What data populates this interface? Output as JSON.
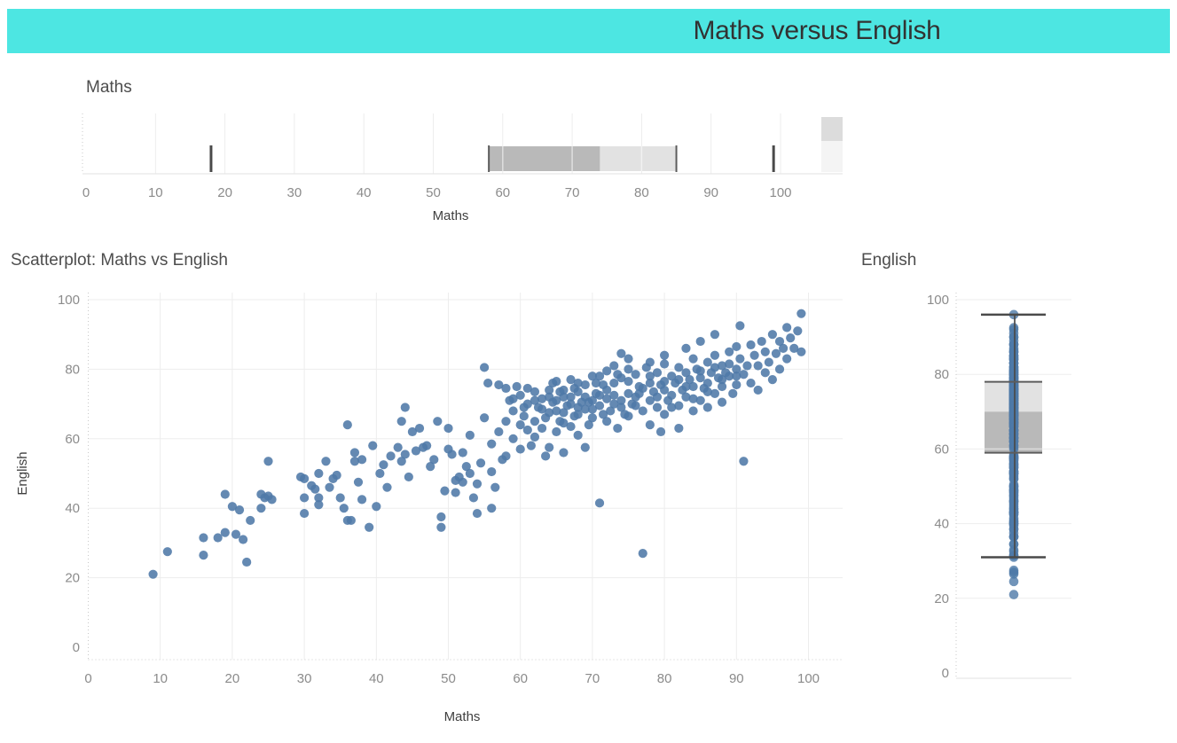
{
  "title": "Maths versus English",
  "colors": {
    "banner": "#4DE6E2",
    "banner_text": "#323232",
    "panel_title": "#4D4D4D",
    "tick_label": "#8B8B8B",
    "axis_title": "#3F3F3F",
    "point": "#4E79A7",
    "box_dark": "#B9B9B9",
    "box_light": "#E2E2E2",
    "box_border": "#5C5C5C",
    "whisker": "#4A4A4A",
    "gridline": "#EDEDED",
    "axis_line": "#E2E2E2",
    "dotted_edge": "#C9C9C9",
    "strip_dark": "#DCDCDC",
    "strip_light": "#F4F4F4"
  },
  "panels": {
    "maths_box": {
      "title": "Maths",
      "axis_title": "Maths"
    },
    "scatter": {
      "title": "Scatterplot: Maths vs English",
      "x_axis_title": "Maths",
      "y_axis_title": "English"
    },
    "english_box": {
      "title": "English"
    }
  },
  "chart_data": [
    {
      "id": "maths-box",
      "type": "boxplot-horizontal",
      "title": "Maths",
      "xlabel": "Maths",
      "xlim": [
        0,
        109
      ],
      "x_ticks": [
        0,
        10,
        20,
        30,
        40,
        50,
        60,
        70,
        80,
        90,
        100
      ],
      "grid": true,
      "whisker_low": 18,
      "q1": 58,
      "median": 74,
      "q3": 85,
      "whisker_high": 99
    },
    {
      "id": "scatter",
      "type": "scatter",
      "title": "Scatterplot: Maths vs English",
      "xlabel": "Maths",
      "ylabel": "English",
      "xlim": [
        0,
        105
      ],
      "ylim": [
        0,
        106
      ],
      "x_ticks": [
        0,
        10,
        20,
        30,
        40,
        50,
        60,
        70,
        80,
        90,
        100
      ],
      "y_ticks": [
        0,
        20,
        40,
        60,
        80,
        100
      ],
      "grid": true,
      "points": [
        [
          9,
          21
        ],
        [
          11,
          27.5
        ],
        [
          16,
          26.5
        ],
        [
          16,
          31.5
        ],
        [
          18,
          31.5
        ],
        [
          19,
          44
        ],
        [
          19,
          33
        ],
        [
          20,
          40.5
        ],
        [
          20.5,
          32.5
        ],
        [
          21,
          39.5
        ],
        [
          21.5,
          31
        ],
        [
          22,
          24.5
        ],
        [
          22.5,
          36.5
        ],
        [
          24,
          44
        ],
        [
          24,
          40
        ],
        [
          24.5,
          43
        ],
        [
          25,
          53.5
        ],
        [
          25,
          43.5
        ],
        [
          25.5,
          42.5
        ],
        [
          29.5,
          49
        ],
        [
          30,
          48.5
        ],
        [
          30,
          43
        ],
        [
          30,
          38.5
        ],
        [
          31,
          46.5
        ],
        [
          31.5,
          45.5
        ],
        [
          32,
          50
        ],
        [
          32,
          43
        ],
        [
          32,
          41
        ],
        [
          33,
          53.5
        ],
        [
          33.5,
          46
        ],
        [
          34,
          48.5
        ],
        [
          34.5,
          49.5
        ],
        [
          35,
          43
        ],
        [
          35.5,
          40
        ],
        [
          36,
          64
        ],
        [
          36,
          36.5
        ],
        [
          36.5,
          36.5
        ],
        [
          37,
          56
        ],
        [
          37,
          53.5
        ],
        [
          37.5,
          47.5
        ],
        [
          38,
          42.5
        ],
        [
          38,
          54
        ],
        [
          39,
          34.5
        ],
        [
          39.5,
          58
        ],
        [
          40,
          40.5
        ],
        [
          40.5,
          50
        ],
        [
          41,
          52.5
        ],
        [
          41.5,
          46
        ],
        [
          42,
          55
        ],
        [
          43,
          57.5
        ],
        [
          43.5,
          53.5
        ],
        [
          43.5,
          65
        ],
        [
          44,
          69
        ],
        [
          44,
          55.5
        ],
        [
          44.5,
          49
        ],
        [
          45,
          62
        ],
        [
          45.5,
          56.5
        ],
        [
          46,
          63
        ],
        [
          46.5,
          57.5
        ],
        [
          47,
          58
        ],
        [
          47.5,
          52
        ],
        [
          48,
          54
        ],
        [
          48.5,
          65
        ],
        [
          49,
          37.5
        ],
        [
          49,
          34.5
        ],
        [
          49.5,
          45
        ],
        [
          50,
          63
        ],
        [
          50,
          57
        ],
        [
          50.5,
          55.5
        ],
        [
          51,
          48
        ],
        [
          51,
          44.5
        ],
        [
          51.5,
          49
        ],
        [
          52,
          56
        ],
        [
          52,
          47.5
        ],
        [
          52.5,
          52
        ],
        [
          53,
          61
        ],
        [
          53,
          50
        ],
        [
          53.5,
          43
        ],
        [
          54,
          47
        ],
        [
          54,
          38.5
        ],
        [
          54.5,
          53
        ],
        [
          55,
          80.5
        ],
        [
          55,
          66
        ],
        [
          55.5,
          76
        ],
        [
          56,
          58.5
        ],
        [
          56,
          50.5
        ],
        [
          56,
          40
        ],
        [
          56.5,
          46
        ],
        [
          57,
          75.5
        ],
        [
          57,
          62
        ],
        [
          57.5,
          54
        ],
        [
          58,
          74.5
        ],
        [
          58,
          65
        ],
        [
          58,
          55
        ],
        [
          58.5,
          71
        ],
        [
          59,
          68
        ],
        [
          59,
          60
        ],
        [
          59,
          71.5
        ],
        [
          59.5,
          75
        ],
        [
          60,
          72.5
        ],
        [
          60,
          64
        ],
        [
          60,
          57
        ],
        [
          60.5,
          66.5
        ],
        [
          60.5,
          69
        ],
        [
          61,
          70
        ],
        [
          61,
          62.5
        ],
        [
          61,
          74.5
        ],
        [
          61.5,
          58
        ],
        [
          62,
          73.5
        ],
        [
          62,
          65
        ],
        [
          62,
          60.5
        ],
        [
          62,
          71
        ],
        [
          62.5,
          69
        ],
        [
          63,
          71.5
        ],
        [
          63,
          63
        ],
        [
          63,
          68.5
        ],
        [
          63.5,
          66
        ],
        [
          63.5,
          55
        ],
        [
          64,
          74
        ],
        [
          64,
          67.5
        ],
        [
          64,
          57.5
        ],
        [
          64,
          72
        ],
        [
          64.5,
          70.5
        ],
        [
          64.5,
          76
        ],
        [
          65,
          76.5
        ],
        [
          65,
          68
        ],
        [
          65,
          62
        ],
        [
          65,
          71
        ],
        [
          65.5,
          65
        ],
        [
          65.5,
          73.5
        ],
        [
          66,
          72
        ],
        [
          66,
          64.5
        ],
        [
          66,
          56
        ],
        [
          66,
          67.5
        ],
        [
          66,
          74
        ],
        [
          66.5,
          69.5
        ],
        [
          67,
          77
        ],
        [
          67,
          70
        ],
        [
          67,
          63.5
        ],
        [
          67,
          72
        ],
        [
          67.5,
          66.5
        ],
        [
          67.5,
          74.5
        ],
        [
          68,
          73.5
        ],
        [
          68,
          67
        ],
        [
          68,
          61
        ],
        [
          68,
          69
        ],
        [
          68,
          76
        ],
        [
          68.5,
          70.5
        ],
        [
          69,
          75.5
        ],
        [
          69,
          68.5
        ],
        [
          69,
          57.5
        ],
        [
          69,
          72
        ],
        [
          69.5,
          64
        ],
        [
          69.5,
          70.5
        ],
        [
          70,
          78
        ],
        [
          70,
          71
        ],
        [
          70,
          66
        ],
        [
          70,
          68.5
        ],
        [
          70.5,
          73
        ],
        [
          70.5,
          76
        ],
        [
          71,
          69.5
        ],
        [
          71,
          41.5
        ],
        [
          71,
          72.5
        ],
        [
          71,
          78
        ],
        [
          71.5,
          75.5
        ],
        [
          71.5,
          67
        ],
        [
          72,
          79.5
        ],
        [
          72,
          71.5
        ],
        [
          72,
          65
        ],
        [
          72,
          74
        ],
        [
          72.5,
          68
        ],
        [
          73,
          76
        ],
        [
          73,
          70
        ],
        [
          73,
          72.5
        ],
        [
          73,
          81
        ],
        [
          73.5,
          63
        ],
        [
          73.5,
          78.5
        ],
        [
          74,
          84.5
        ],
        [
          74,
          77.5
        ],
        [
          74,
          71
        ],
        [
          74,
          69
        ],
        [
          74.5,
          67
        ],
        [
          75,
          80
        ],
        [
          75,
          73
        ],
        [
          75,
          66.5
        ],
        [
          75,
          76.5
        ],
        [
          75,
          83
        ],
        [
          75.5,
          70
        ],
        [
          76,
          78.5
        ],
        [
          76,
          72
        ],
        [
          76,
          69.5
        ],
        [
          76.5,
          75
        ],
        [
          76.5,
          73
        ],
        [
          77,
          27
        ],
        [
          77,
          68
        ],
        [
          77,
          74.5
        ],
        [
          77.5,
          80.5
        ],
        [
          78,
          76
        ],
        [
          78,
          71
        ],
        [
          78,
          64
        ],
        [
          78,
          78
        ],
        [
          78,
          82
        ],
        [
          78.5,
          73.5
        ],
        [
          79,
          79
        ],
        [
          79,
          69
        ],
        [
          79,
          72
        ],
        [
          79.5,
          75.5
        ],
        [
          79.5,
          62
        ],
        [
          80,
          81.5
        ],
        [
          80,
          74
        ],
        [
          80,
          67
        ],
        [
          80,
          76.5
        ],
        [
          80,
          84
        ],
        [
          80.5,
          71
        ],
        [
          81,
          78
        ],
        [
          81,
          72.5
        ],
        [
          81,
          69
        ],
        [
          81.5,
          76
        ],
        [
          82,
          80.5
        ],
        [
          82,
          69.5
        ],
        [
          82,
          63
        ],
        [
          82,
          77
        ],
        [
          82.5,
          74
        ],
        [
          83,
          79
        ],
        [
          83,
          72
        ],
        [
          83,
          75
        ],
        [
          83,
          86
        ],
        [
          83.5,
          77
        ],
        [
          84,
          83
        ],
        [
          84,
          75
        ],
        [
          84,
          68
        ],
        [
          84,
          71.5
        ],
        [
          84.5,
          80
        ],
        [
          85,
          77.5
        ],
        [
          85,
          71
        ],
        [
          85,
          79.5
        ],
        [
          85,
          88
        ],
        [
          85.5,
          74.5
        ],
        [
          86,
          82
        ],
        [
          86,
          76
        ],
        [
          86,
          69
        ],
        [
          86,
          73.5
        ],
        [
          86.5,
          79
        ],
        [
          87,
          84
        ],
        [
          87,
          73
        ],
        [
          87,
          80.5
        ],
        [
          87,
          90
        ],
        [
          87.5,
          77.5
        ],
        [
          88,
          81
        ],
        [
          88,
          75
        ],
        [
          88,
          70.5
        ],
        [
          88,
          77
        ],
        [
          88.5,
          79
        ],
        [
          89,
          85
        ],
        [
          89,
          78
        ],
        [
          89,
          81.5
        ],
        [
          89.5,
          73
        ],
        [
          90,
          86.5
        ],
        [
          90,
          80
        ],
        [
          90,
          75.5
        ],
        [
          90,
          78
        ],
        [
          90.5,
          83
        ],
        [
          90.5,
          92.5
        ],
        [
          91,
          78.5
        ],
        [
          91,
          53.5
        ],
        [
          91.5,
          81
        ],
        [
          92,
          87
        ],
        [
          92,
          76
        ],
        [
          92.5,
          84
        ],
        [
          93,
          81
        ],
        [
          93,
          74
        ],
        [
          93.5,
          88
        ],
        [
          94,
          85
        ],
        [
          94,
          79
        ],
        [
          94.5,
          82
        ],
        [
          95,
          90
        ],
        [
          95,
          77
        ],
        [
          95.5,
          84.5
        ],
        [
          96,
          88
        ],
        [
          96,
          80
        ],
        [
          96.5,
          86
        ],
        [
          97,
          92
        ],
        [
          97,
          83
        ],
        [
          97.5,
          89
        ],
        [
          98,
          86
        ],
        [
          98.5,
          91
        ],
        [
          99,
          96
        ],
        [
          99,
          85
        ]
      ]
    },
    {
      "id": "english-box",
      "type": "boxplot-vertical",
      "title": "English",
      "ylim": [
        0,
        108
      ],
      "y_ticks": [
        0,
        20,
        40,
        60,
        80,
        100
      ],
      "grid": true,
      "whisker_low": 31,
      "q1": 59,
      "median": 70,
      "q3": 78,
      "whisker_high": 96,
      "outliers_low": [
        27.5,
        27,
        26.5,
        24.5,
        21
      ]
    }
  ]
}
